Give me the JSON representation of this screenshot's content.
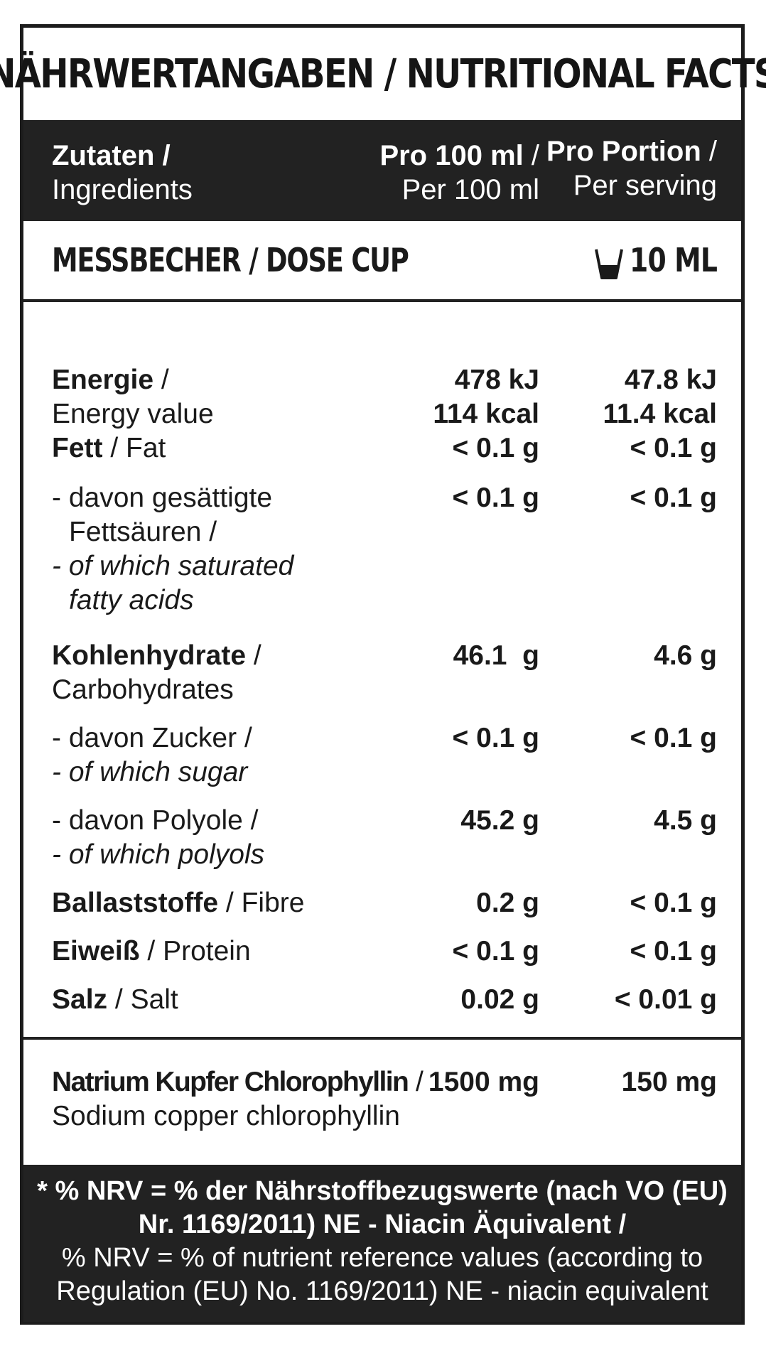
{
  "title": "NÄHRWERTANGABEN / NUTRITIONAL FACTS",
  "header": {
    "col1_de": "Zutaten /",
    "col1_en": "Ingredients",
    "col2_de": "Pro 100 ml",
    "col2_sep": " /",
    "col2_en": "Per 100 ml",
    "col3_de": "Pro Portion",
    "col3_sep": " /",
    "col3_en": "Per serving"
  },
  "dose": {
    "label": "MESSBECHER / DOSE CUP",
    "icon": "cup-icon",
    "value": "10 ML"
  },
  "rows": [
    {
      "de": "Energie",
      "en": "Energy value",
      "v1a": "478 kJ",
      "v1b": "114 kcal",
      "v2a": "47.8 kJ",
      "v2b": "11.4 kcal"
    },
    {
      "de": "Fett",
      "en": "Fat",
      "v1": "< 0.1 g",
      "v2": "< 0.1 g"
    },
    {
      "de1": "- davon gesättigte",
      "de2": "Fettsäuren /",
      "en1": "- of which saturated",
      "en2": "fatty acids",
      "v1": "< 0.1 g",
      "v2": "< 0.1 g"
    },
    {
      "de": "Kohlenhydrate",
      "en": "Carbohydrates",
      "v1": "46.1  g",
      "v2": "4.6 g"
    },
    {
      "de": "- davon Zucker /",
      "en": "- of which sugar",
      "v1": "< 0.1 g",
      "v2": "< 0.1 g"
    },
    {
      "de": "- davon Polyole /",
      "en": "- of which polyols",
      "v1": "45.2 g",
      "v2": "4.5 g"
    },
    {
      "de": "Ballaststoffe",
      "en": "Fibre",
      "v1": "0.2 g",
      "v2": "< 0.1 g"
    },
    {
      "de": "Eiweiß",
      "en": "Protein",
      "v1": "< 0.1 g",
      "v2": "< 0.1 g"
    },
    {
      "de": "Salz",
      "en": "Salt",
      "v1": "0.02 g",
      "v2": "< 0.01 g"
    }
  ],
  "chlorophyllin": {
    "de": "Natrium Kupfer Chlorophyllin",
    "sep": " /",
    "en": "Sodium copper chlorophyllin",
    "v1": "1500 mg",
    "v2": "150 mg"
  },
  "footer": {
    "line1": "* % NRV = % der Nährstoffbezugswerte (nach VO (EU)",
    "line2": "Nr. 1169/2011) NE - Niacin Äquivalent /",
    "line3": "% NRV = % of nutrient reference values (according to",
    "line4": "Regulation (EU) No. 1169/2011)  NE - niacin equivalent"
  }
}
